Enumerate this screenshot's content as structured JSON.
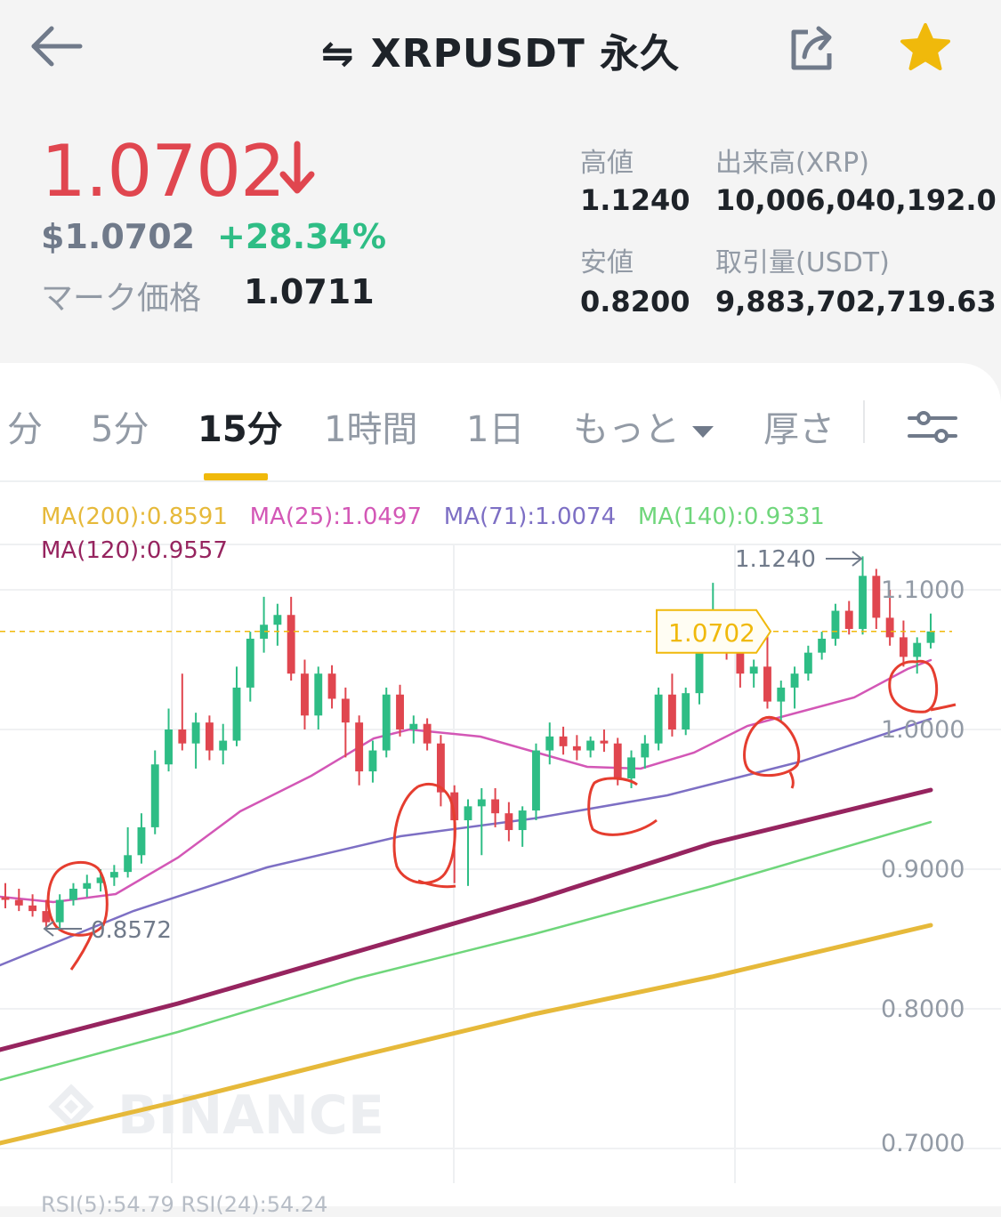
{
  "header": {
    "title": "XRPUSDT 永久",
    "swap_glyph": "⇋",
    "back_icon": "arrow-left-icon",
    "share_icon": "share-icon",
    "favorite_icon": "star-icon"
  },
  "price": {
    "last": "1.0702",
    "usd": "$1.0702",
    "change": "+28.34%",
    "mark_label": "マーク価格",
    "mark_value": "1.0711"
  },
  "stats": {
    "high_label": "高値",
    "high_value": "1.1240",
    "low_label": "安値",
    "low_value": "0.8200",
    "volume_base_label": "出来高(XRP)",
    "volume_base_value": "10,006,040,192.0",
    "volume_quote_label": "取引量(USDT)",
    "volume_quote_value": "9,883,702,719.63"
  },
  "tabs": {
    "items": [
      "分",
      "5分",
      "15分",
      "1時間",
      "1日",
      "もっと",
      "厚さ"
    ],
    "active": "15分",
    "settings_icon": "sliders-icon"
  },
  "indicators": {
    "ma200": "MA(200):0.8591",
    "ma25": "MA(25):1.0497",
    "ma71": "MA(71):1.0074",
    "ma140": "MA(140):0.9331",
    "ma120": "MA(120):0.9557",
    "rsi": "RSI(5):54.79   RSI(24):54.24"
  },
  "colors": {
    "down": "#e0464f",
    "up": "#2ebd85",
    "accent": "#f0b90b",
    "ma200": "#e6b93a",
    "ma25": "#d357b6",
    "ma71": "#7d6fc4",
    "ma140": "#6fd67b",
    "ma120": "#96245f"
  },
  "chart_data": {
    "type": "candlestick",
    "interval": "15分",
    "y_ticks": [
      "1.1000",
      "1.0000",
      "0.9000",
      "0.8000",
      "0.7000"
    ],
    "ylim": [
      0.69,
      1.135
    ],
    "current_price_tag": "1.0702",
    "high_marker": "1.1240",
    "low_marker": "0.8572",
    "watermark": "BINANCE",
    "candles": [
      {
        "o": 0.88,
        "h": 0.89,
        "l": 0.872,
        "c": 0.878
      },
      {
        "o": 0.878,
        "h": 0.886,
        "l": 0.87,
        "c": 0.874
      },
      {
        "o": 0.874,
        "h": 0.882,
        "l": 0.866,
        "c": 0.87
      },
      {
        "o": 0.87,
        "h": 0.878,
        "l": 0.857,
        "c": 0.862
      },
      {
        "o": 0.862,
        "h": 0.882,
        "l": 0.858,
        "c": 0.878
      },
      {
        "o": 0.878,
        "h": 0.89,
        "l": 0.874,
        "c": 0.886
      },
      {
        "o": 0.886,
        "h": 0.896,
        "l": 0.88,
        "c": 0.89
      },
      {
        "o": 0.89,
        "h": 0.9,
        "l": 0.884,
        "c": 0.894
      },
      {
        "o": 0.894,
        "h": 0.903,
        "l": 0.888,
        "c": 0.898
      },
      {
        "o": 0.898,
        "h": 0.93,
        "l": 0.894,
        "c": 0.91
      },
      {
        "o": 0.91,
        "h": 0.94,
        "l": 0.904,
        "c": 0.93
      },
      {
        "o": 0.93,
        "h": 0.985,
        "l": 0.925,
        "c": 0.975
      },
      {
        "o": 0.975,
        "h": 1.015,
        "l": 0.97,
        "c": 1.0
      },
      {
        "o": 1.0,
        "h": 1.04,
        "l": 0.985,
        "c": 0.99
      },
      {
        "o": 0.99,
        "h": 1.012,
        "l": 0.972,
        "c": 1.005
      },
      {
        "o": 1.005,
        "h": 1.01,
        "l": 0.978,
        "c": 0.985
      },
      {
        "o": 0.985,
        "h": 1.004,
        "l": 0.975,
        "c": 0.992
      },
      {
        "o": 0.992,
        "h": 1.045,
        "l": 0.988,
        "c": 1.03
      },
      {
        "o": 1.03,
        "h": 1.07,
        "l": 1.02,
        "c": 1.065
      },
      {
        "o": 1.065,
        "h": 1.095,
        "l": 1.055,
        "c": 1.075
      },
      {
        "o": 1.075,
        "h": 1.09,
        "l": 1.06,
        "c": 1.082
      },
      {
        "o": 1.082,
        "h": 1.095,
        "l": 1.035,
        "c": 1.04
      },
      {
        "o": 1.04,
        "h": 1.05,
        "l": 1.0,
        "c": 1.01
      },
      {
        "o": 1.01,
        "h": 1.045,
        "l": 1.0,
        "c": 1.04
      },
      {
        "o": 1.04,
        "h": 1.046,
        "l": 1.015,
        "c": 1.022
      },
      {
        "o": 1.022,
        "h": 1.03,
        "l": 0.98,
        "c": 1.005
      },
      {
        "o": 1.005,
        "h": 1.01,
        "l": 0.96,
        "c": 0.97
      },
      {
        "o": 0.97,
        "h": 0.992,
        "l": 0.962,
        "c": 0.985
      },
      {
        "o": 0.985,
        "h": 1.03,
        "l": 0.98,
        "c": 1.025
      },
      {
        "o": 1.025,
        "h": 1.032,
        "l": 0.995,
        "c": 1.0
      },
      {
        "o": 1.0,
        "h": 1.01,
        "l": 0.99,
        "c": 1.004
      },
      {
        "o": 1.004,
        "h": 1.008,
        "l": 0.985,
        "c": 0.99
      },
      {
        "o": 0.99,
        "h": 0.996,
        "l": 0.945,
        "c": 0.955
      },
      {
        "o": 0.955,
        "h": 0.96,
        "l": 0.89,
        "c": 0.935
      },
      {
        "o": 0.935,
        "h": 0.95,
        "l": 0.888,
        "c": 0.945
      },
      {
        "o": 0.945,
        "h": 0.958,
        "l": 0.91,
        "c": 0.95
      },
      {
        "o": 0.95,
        "h": 0.958,
        "l": 0.93,
        "c": 0.94
      },
      {
        "o": 0.94,
        "h": 0.948,
        "l": 0.92,
        "c": 0.928
      },
      {
        "o": 0.928,
        "h": 0.945,
        "l": 0.916,
        "c": 0.942
      },
      {
        "o": 0.942,
        "h": 0.99,
        "l": 0.935,
        "c": 0.985
      },
      {
        "o": 0.985,
        "h": 1.005,
        "l": 0.975,
        "c": 0.995
      },
      {
        "o": 0.995,
        "h": 1.002,
        "l": 0.982,
        "c": 0.988
      },
      {
        "o": 0.988,
        "h": 0.996,
        "l": 0.978,
        "c": 0.985
      },
      {
        "o": 0.985,
        "h": 0.995,
        "l": 0.98,
        "c": 0.992
      },
      {
        "o": 0.992,
        "h": 1.0,
        "l": 0.984,
        "c": 0.99
      },
      {
        "o": 0.99,
        "h": 0.994,
        "l": 0.96,
        "c": 0.965
      },
      {
        "o": 0.965,
        "h": 0.985,
        "l": 0.958,
        "c": 0.98
      },
      {
        "o": 0.98,
        "h": 0.996,
        "l": 0.972,
        "c": 0.99
      },
      {
        "o": 0.99,
        "h": 1.03,
        "l": 0.985,
        "c": 1.025
      },
      {
        "o": 1.025,
        "h": 1.04,
        "l": 0.995,
        "c": 1.0
      },
      {
        "o": 1.0,
        "h": 1.03,
        "l": 0.996,
        "c": 1.026
      },
      {
        "o": 1.026,
        "h": 1.075,
        "l": 1.018,
        "c": 1.07
      },
      {
        "o": 1.07,
        "h": 1.105,
        "l": 1.06,
        "c": 1.07
      },
      {
        "o": 1.07,
        "h": 1.075,
        "l": 1.05,
        "c": 1.058
      },
      {
        "o": 1.058,
        "h": 1.066,
        "l": 1.03,
        "c": 1.04
      },
      {
        "o": 1.04,
        "h": 1.05,
        "l": 1.03,
        "c": 1.045
      },
      {
        "o": 1.045,
        "h": 1.07,
        "l": 1.015,
        "c": 1.02
      },
      {
        "o": 1.02,
        "h": 1.035,
        "l": 1.005,
        "c": 1.03
      },
      {
        "o": 1.03,
        "h": 1.045,
        "l": 1.015,
        "c": 1.04
      },
      {
        "o": 1.04,
        "h": 1.06,
        "l": 1.035,
        "c": 1.055
      },
      {
        "o": 1.055,
        "h": 1.07,
        "l": 1.05,
        "c": 1.065
      },
      {
        "o": 1.065,
        "h": 1.09,
        "l": 1.06,
        "c": 1.085
      },
      {
        "o": 1.085,
        "h": 1.092,
        "l": 1.068,
        "c": 1.072
      },
      {
        "o": 1.072,
        "h": 1.124,
        "l": 1.068,
        "c": 1.11
      },
      {
        "o": 1.11,
        "h": 1.115,
        "l": 1.072,
        "c": 1.08
      },
      {
        "o": 1.08,
        "h": 1.1,
        "l": 1.06,
        "c": 1.066
      },
      {
        "o": 1.066,
        "h": 1.078,
        "l": 1.045,
        "c": 1.052
      },
      {
        "o": 1.052,
        "h": 1.066,
        "l": 1.04,
        "c": 1.062
      },
      {
        "o": 1.062,
        "h": 1.083,
        "l": 1.058,
        "c": 1.0702
      }
    ]
  }
}
